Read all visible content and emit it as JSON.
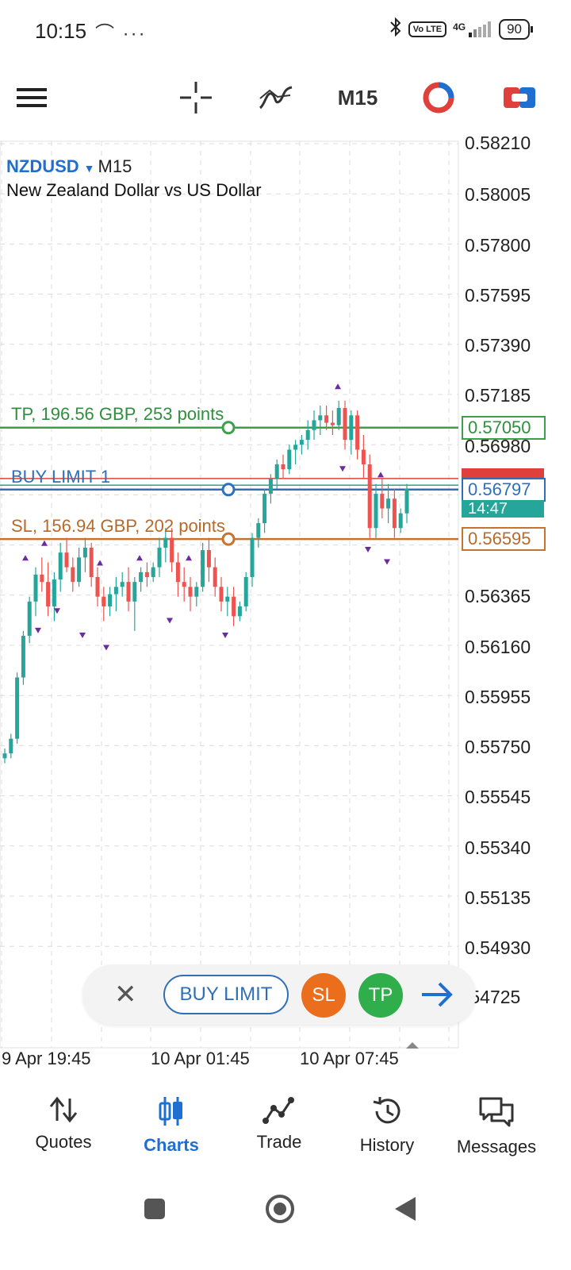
{
  "status_bar": {
    "time": "10:15",
    "extra": "⌒ ···",
    "network": "4G",
    "volte": "Vo LTE",
    "battery": "90"
  },
  "toolbar": {
    "menu_icon": "hamburger-menu-icon",
    "crosshair_icon": "crosshair-icon",
    "indicators_icon": "indicators-icon",
    "timeframe": "M15",
    "objects_icon": "clock-circle-icon",
    "trade_icon": "trade-toggle-icon"
  },
  "chart": {
    "symbol": "NZDUSD",
    "timeframe": "M15",
    "description": "New Zealand Dollar vs US Dollar",
    "price_axis": [
      "0.58210",
      "0.58005",
      "0.57800",
      "0.57595",
      "0.57390",
      "0.57185",
      "0.56980",
      "0.56365",
      "0.56160",
      "0.55955",
      "0.55750",
      "0.55545",
      "0.55340",
      "0.55135",
      "0.54930",
      ".54725"
    ],
    "time_axis": [
      "9 Apr 19:45",
      "10 Apr 01:45",
      "10 Apr 07:45"
    ],
    "tp_line": {
      "label": "TP, 196.56 GBP, 253 points",
      "price": "0.57050",
      "color": "#3aa04a"
    },
    "buy_limit_line": {
      "label": "BUY LIMIT 1",
      "price": "0.56797",
      "color": "#2f6fb7"
    },
    "sl_line": {
      "label": "SL, 156.94 GBP, 202 points",
      "price": "0.56595",
      "color": "#c8732d"
    },
    "countdown": "14:47",
    "colors": {
      "bull": "#26a69a",
      "bear": "#ef5350",
      "grid": "#dcdcdc",
      "marker": "#6a2c9e"
    }
  },
  "order_bar": {
    "close_label": "✕",
    "buy_limit_label": "BUY LIMIT",
    "sl_label": "SL",
    "tp_label": "TP",
    "arrow_icon": "arrow-right-icon"
  },
  "bottom_nav": {
    "items": [
      {
        "label": "Quotes",
        "icon": "quotes-arrows-icon"
      },
      {
        "label": "Charts",
        "icon": "charts-candles-icon"
      },
      {
        "label": "Trade",
        "icon": "trade-line-icon"
      },
      {
        "label": "History",
        "icon": "history-clock-icon"
      },
      {
        "label": "Messages",
        "icon": "messages-bubbles-icon"
      }
    ],
    "active": "Charts"
  },
  "system_nav": {
    "recents": "recents-square-icon",
    "home": "home-circle-icon",
    "back": "back-triangle-icon"
  }
}
